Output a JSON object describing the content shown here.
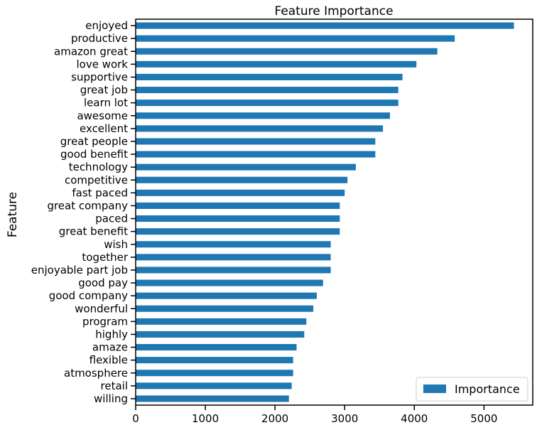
{
  "chart_data": {
    "type": "bar",
    "orientation": "horizontal",
    "title": "Feature Importance",
    "xlabel": "",
    "ylabel": "Feature",
    "xlim": [
      0,
      5700
    ],
    "xticks": [
      0,
      1000,
      2000,
      3000,
      4000,
      5000
    ],
    "grid": false,
    "legend_position": "bottom-right",
    "bar_color": "#1f77b4",
    "categories": [
      "enjoyed",
      "productive",
      "amazon great",
      "love work",
      "supportive",
      "great job",
      "learn lot",
      "awesome",
      "excellent",
      "great people",
      "good benefit",
      "technology",
      "competitive",
      "fast paced",
      "great company",
      "paced",
      "great benefit",
      "wish",
      "together",
      "enjoyable part job",
      "good pay",
      "good company",
      "wonderful",
      "program",
      "highly",
      "amaze",
      "flexible",
      "atmosphere",
      "retail",
      "willing"
    ],
    "series": [
      {
        "name": "Importance",
        "values": [
          5430,
          4580,
          4330,
          4030,
          3830,
          3770,
          3770,
          3650,
          3550,
          3440,
          3440,
          3160,
          3040,
          3000,
          2930,
          2930,
          2930,
          2800,
          2800,
          2800,
          2690,
          2600,
          2550,
          2450,
          2420,
          2310,
          2260,
          2260,
          2240,
          2200
        ]
      }
    ]
  }
}
